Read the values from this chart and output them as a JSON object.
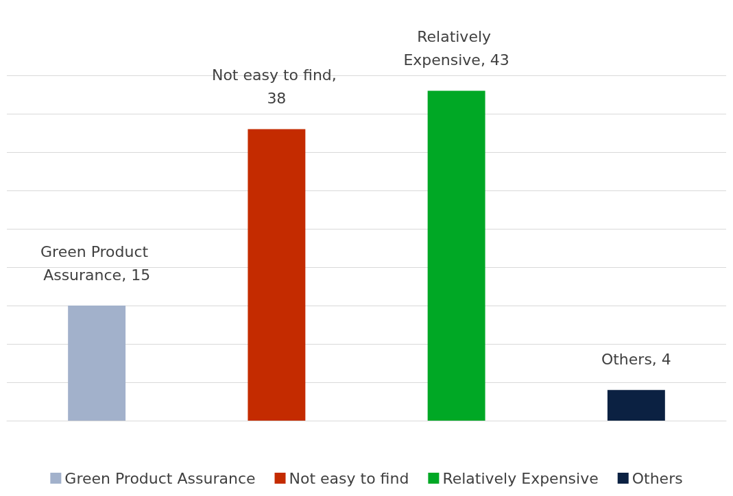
{
  "chart_data": {
    "type": "bar",
    "categories": [
      null,
      null,
      null,
      null
    ],
    "series": [
      {
        "name": "Green Product Assurance",
        "color": "#a2b1cb",
        "values": [
          15,
          null,
          null,
          null
        ],
        "value_labels": [
          "Green Product Assurance, 15",
          null,
          null,
          null
        ]
      },
      {
        "name": "Not easy to find",
        "color": "#c42b00",
        "values": [
          null,
          38,
          null,
          null
        ],
        "value_labels": [
          null,
          "Not easy to find, 38",
          null,
          null
        ]
      },
      {
        "name": "Relatively Expensive",
        "color": "#00a825",
        "values": [
          null,
          null,
          43,
          null
        ],
        "value_labels": [
          null,
          null,
          "Relatively Expensive, 43",
          null
        ]
      },
      {
        "name": "Others",
        "color": "#0b2142",
        "values": [
          null,
          null,
          null,
          4
        ],
        "value_labels": [
          null,
          null,
          null,
          "Others, 4"
        ]
      }
    ],
    "stacked": true,
    "grid": "y",
    "legend": "bottom",
    "tick_labels": false
  }
}
